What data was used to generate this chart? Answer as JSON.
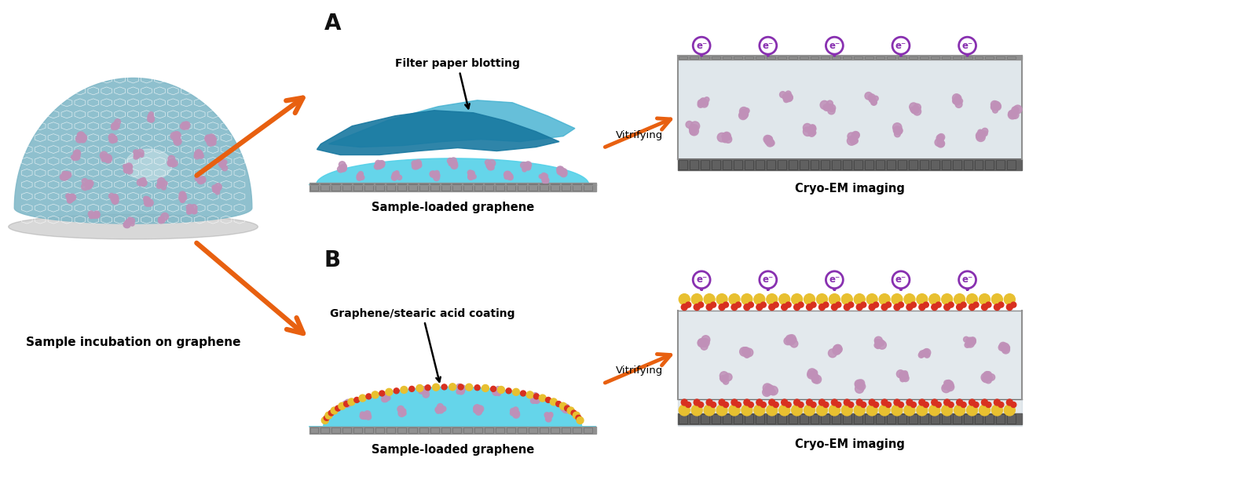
{
  "bg_color": "#ffffff",
  "label_A": "A",
  "label_B": "B",
  "text_sample_incubation": "Sample incubation on graphene",
  "text_filter_blotting": "Filter paper blotting",
  "text_vitrifying_A": "Vitrifying",
  "text_vitrifying_B": "Vitrifying",
  "text_sample_graphene_A": "Sample-loaded graphene",
  "text_sample_graphene_B": "Sample-loaded graphene",
  "text_cryo_em_A": "Cryo-EM imaging",
  "text_cryo_em_B": "Cryo-EM imaging",
  "text_gsa_coating": "Graphene/stearic acid coating",
  "arrow_color": "#e86010",
  "electron_color": "#8830b0",
  "water_color": "#50d0e8",
  "filter_paper_color_dark": "#1878a0",
  "filter_paper_color_light": "#40b0d0",
  "cryo_ice_color": "#c8d4dc",
  "graphene_dark": "#707070",
  "graphene_light": "#909090",
  "protein_color": "#c090b8",
  "stearic_yellow": "#e8c030",
  "stearic_red": "#d83020",
  "dome_color": "#80b8c8",
  "dome_hex": "#ffffff"
}
